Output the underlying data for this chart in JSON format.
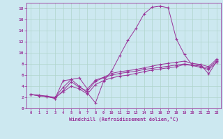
{
  "xlabel": "Windchill (Refroidissement éolien,°C)",
  "background_color": "#cce8f0",
  "grid_color": "#b0d4cc",
  "line_color": "#993399",
  "xlim": [
    -0.5,
    23.5
  ],
  "ylim": [
    0,
    19
  ],
  "xticks": [
    0,
    1,
    2,
    3,
    4,
    5,
    6,
    7,
    8,
    9,
    10,
    11,
    12,
    13,
    14,
    15,
    16,
    17,
    18,
    19,
    20,
    21,
    22,
    23
  ],
  "yticks": [
    0,
    2,
    4,
    6,
    8,
    10,
    12,
    14,
    16,
    18
  ],
  "series": [
    {
      "x": [
        0,
        1,
        2,
        3,
        4,
        5,
        6,
        7,
        8,
        9,
        10,
        11,
        12,
        13,
        14,
        15,
        16,
        17,
        18,
        19,
        20,
        21,
        22,
        23
      ],
      "y": [
        2.5,
        2.3,
        2.2,
        1.8,
        5.0,
        5.2,
        4.0,
        2.8,
        1.0,
        4.9,
        6.7,
        9.5,
        12.2,
        14.4,
        17.0,
        18.2,
        18.4,
        18.1,
        12.5,
        9.7,
        7.7,
        7.9,
        6.2,
        8.5
      ]
    },
    {
      "x": [
        0,
        1,
        2,
        3,
        4,
        5,
        6,
        7,
        8,
        9,
        10,
        11,
        12,
        13,
        14,
        15,
        16,
        17,
        18,
        19,
        20,
        21,
        22,
        23
      ],
      "y": [
        2.5,
        2.3,
        2.1,
        2.0,
        3.8,
        5.2,
        5.5,
        3.5,
        5.1,
        5.6,
        6.3,
        6.6,
        6.8,
        7.0,
        7.3,
        7.6,
        7.9,
        8.1,
        8.3,
        8.5,
        8.1,
        7.9,
        7.5,
        8.9
      ]
    },
    {
      "x": [
        0,
        1,
        2,
        3,
        4,
        5,
        6,
        7,
        8,
        9,
        10,
        11,
        12,
        13,
        14,
        15,
        16,
        17,
        18,
        19,
        20,
        21,
        22,
        23
      ],
      "y": [
        2.5,
        2.3,
        2.1,
        1.8,
        3.2,
        4.8,
        3.8,
        3.1,
        4.9,
        5.5,
        6.0,
        6.3,
        6.5,
        6.7,
        7.0,
        7.2,
        7.4,
        7.6,
        7.8,
        8.0,
        7.8,
        7.6,
        7.2,
        8.6
      ]
    },
    {
      "x": [
        0,
        1,
        2,
        3,
        4,
        5,
        6,
        7,
        8,
        9,
        10,
        11,
        12,
        13,
        14,
        15,
        16,
        17,
        18,
        19,
        20,
        21,
        22,
        23
      ],
      "y": [
        2.5,
        2.4,
        2.2,
        2.0,
        3.0,
        4.0,
        3.5,
        2.6,
        4.3,
        5.0,
        5.5,
        5.8,
        6.0,
        6.3,
        6.6,
        6.9,
        7.1,
        7.3,
        7.5,
        7.9,
        7.7,
        7.4,
        7.0,
        8.3
      ]
    }
  ]
}
